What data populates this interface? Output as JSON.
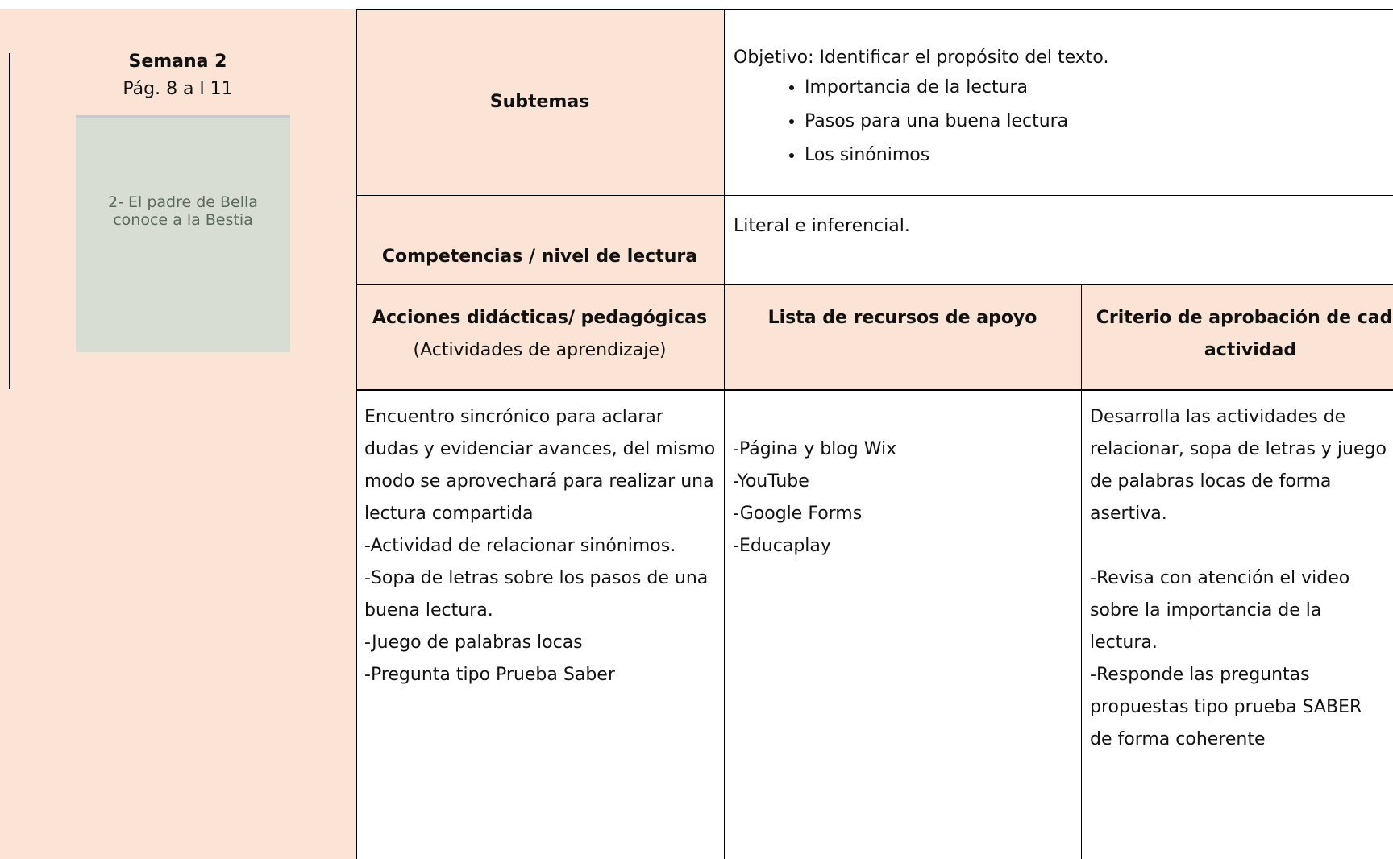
{
  "week": {
    "title": "Semana 2",
    "pages": "Pág. 8 a l 11",
    "image_caption": "2- El padre de Bella conoce a la Bestia"
  },
  "subtemas": {
    "label": "Subtemas",
    "objective": "Objetivo: Identificar el propósito del texto.",
    "items": [
      "Importancia de la lectura",
      "Pasos para una buena lectura",
      "Los sinónimos"
    ]
  },
  "competencias": {
    "label": "Competencias / nivel de lectura",
    "text": "Literal e inferencial."
  },
  "table": {
    "headers": [
      {
        "title": "Acciones didácticas/ pedagógicas",
        "subtitle": "(Actividades de aprendizaje)"
      },
      {
        "title": "Lista de recursos de apoyo"
      },
      {
        "title": "Criterio de aprobación de cada actividad"
      }
    ],
    "acciones": [
      "Encuentro sincrónico para aclarar dudas y evidenciar avances, del mismo modo se aprovechará para realizar una lectura compartida",
      "-Actividad de relacionar sinónimos.",
      "-Sopa de letras sobre los pasos de una buena lectura.",
      "-Juego de palabras locas",
      "-Pregunta tipo Prueba Saber"
    ],
    "recursos": [
      "-Página y blog Wix",
      "-YouTube",
      "-Google Forms",
      "-Educaplay"
    ],
    "criterio": [
      [
        "Desarrolla las actividades de relacionar, sopa de letras y juego de palabras locas de forma asertiva."
      ],
      [
        "-Revisa con atención el video sobre la importancia de la lectura.",
        "-Responde las preguntas propuestas tipo prueba SABER de forma coherente"
      ]
    ]
  }
}
